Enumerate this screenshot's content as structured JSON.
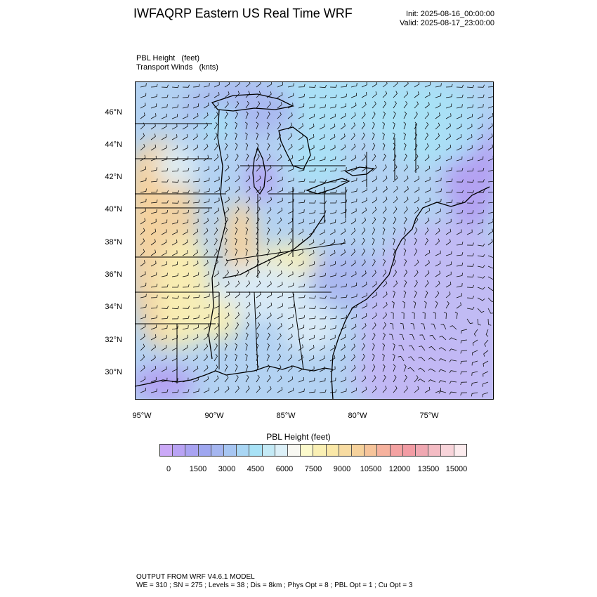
{
  "title": "IWFAQRP Eastern US Real Time WRF",
  "init_time": "Init: 2025-08-16_00:00:00",
  "valid_time": "Valid: 2025-08-17_23:00:00",
  "field_label": "PBL Height   (feet)",
  "vector_label": "Transport Winds   (knts)",
  "map": {
    "latitude_labels": [
      "46°N",
      "44°N",
      "42°N",
      "40°N",
      "38°N",
      "36°N",
      "34°N",
      "32°N",
      "30°N"
    ],
    "longitude_labels": [
      "95°W",
      "90°W",
      "85°W",
      "80°W",
      "75°W"
    ],
    "fill_colors": {
      "low": "#b49cf2",
      "mid_low": "#aab6f0",
      "cyan": "#a8e2f6",
      "light": "#dcecf6",
      "yellow": "#faf0b4",
      "orange": "#f6d29c",
      "ocean": "#c2b8f4",
      "land_default": "#b3d2f2"
    },
    "border_color": "#000000"
  },
  "colorbar": {
    "title": "PBL Height  (feet)",
    "labels": [
      "0",
      "1500",
      "3000",
      "4500",
      "6000",
      "7500",
      "9000",
      "10500",
      "12000",
      "13500",
      "15000"
    ],
    "colors": [
      "#cba9f7",
      "#b9a3f4",
      "#a9a3f2",
      "#9fa7f0",
      "#a5b6f0",
      "#a7c6f2",
      "#a9d6f4",
      "#a8e2f6",
      "#c4eaf6",
      "#dcf0f8",
      "#f8f8f2",
      "#fcfacc",
      "#faf0b4",
      "#fae8a8",
      "#f8dca2",
      "#f6d29c",
      "#f6c49a",
      "#f6b29e",
      "#f4a2a2",
      "#f29ca4",
      "#f0a8b2",
      "#f4bcc4",
      "#f8d4da",
      "#fcecee"
    ]
  },
  "footer": {
    "line1": "OUTPUT FROM WRF V4.6.1 MODEL",
    "line2": "WE = 310 ; SN = 275 ; Levels = 38 ; Dis = 8km ; Phys Opt = 8 ; PBL Opt = 1 ; Cu Opt = 3"
  }
}
